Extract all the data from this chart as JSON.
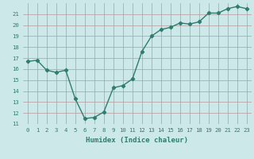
{
  "x": [
    0,
    1,
    2,
    3,
    4,
    5,
    6,
    7,
    8,
    9,
    10,
    11,
    12,
    13,
    14,
    15,
    16,
    17,
    18,
    19,
    20,
    21,
    22,
    23
  ],
  "y": [
    16.7,
    16.8,
    15.9,
    15.7,
    15.9,
    13.3,
    11.5,
    11.6,
    12.1,
    14.3,
    14.5,
    15.1,
    17.6,
    19.0,
    19.6,
    19.8,
    20.2,
    20.1,
    20.3,
    21.1,
    21.1,
    21.5,
    21.7,
    21.5
  ],
  "xlabel": "Humidex (Indice chaleur)",
  "xlim": [
    -0.5,
    23.5
  ],
  "ylim": [
    11,
    22
  ],
  "yticks": [
    11,
    12,
    13,
    14,
    15,
    16,
    17,
    18,
    19,
    20,
    21
  ],
  "xticks": [
    0,
    1,
    2,
    3,
    4,
    5,
    6,
    7,
    8,
    9,
    10,
    11,
    12,
    13,
    14,
    15,
    16,
    17,
    18,
    19,
    20,
    21,
    22,
    23
  ],
  "line_color": "#2e7d6e",
  "marker": "D",
  "marker_size": 2.2,
  "bg_color": "#cde8e8",
  "grid_color": "#b89898",
  "line_width": 1.0,
  "font_color": "#2e7d6e",
  "xlabel_fontsize": 6.5,
  "tick_fontsize": 5.2
}
